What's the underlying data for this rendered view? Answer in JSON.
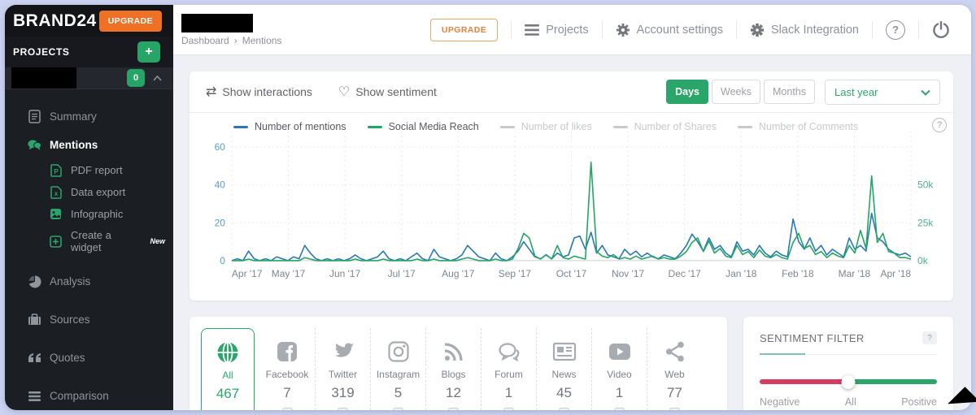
{
  "colors": {
    "accent_green": "#2aa66b",
    "accent_orange": "#ee7125",
    "mentions_blue": "#2878b4",
    "reach_green": "#21a663",
    "inactive_gray": "#c6cacd",
    "sentiment_red": "#d63b60"
  },
  "sidebar": {
    "brand": "BRAND24",
    "upgrade_label": "UPGRADE",
    "projects_label": "PROJECTS",
    "add_project_label": "+",
    "project_badge_count": "0",
    "items": [
      {
        "label": "Summary",
        "icon": "document-icon",
        "style": "normal"
      },
      {
        "label": "Mentions",
        "icon": "chat-bubbles-icon",
        "style": "active"
      },
      {
        "label": "PDF report",
        "icon": "pdf-file-icon",
        "style": "sub"
      },
      {
        "label": "Data export",
        "icon": "excel-file-icon",
        "style": "sub"
      },
      {
        "label": "Infographic",
        "icon": "image-file-icon",
        "style": "sub"
      },
      {
        "label": "Create a widget",
        "icon": "widget-plus-icon",
        "style": "sub",
        "badge": "New"
      },
      {
        "label": "Analysis",
        "icon": "pie-chart-icon",
        "style": "normal gap"
      },
      {
        "label": "Sources",
        "icon": "briefcase-icon",
        "style": "normal gap"
      },
      {
        "label": "Quotes",
        "icon": "quotes-icon",
        "style": "normal gap"
      },
      {
        "label": "Comparison",
        "icon": "layers-icon",
        "style": "normal gap"
      }
    ]
  },
  "header": {
    "breadcrumb": {
      "parent": "Dashboard",
      "separator": "›",
      "current": "Mentions"
    },
    "upgrade_label": "UPGRADE",
    "nav": [
      {
        "label": "Projects",
        "icon": "hamburger-icon"
      },
      {
        "label": "Account settings",
        "icon": "gear-icon"
      },
      {
        "label": "Slack Integration",
        "icon": "gear-icon"
      }
    ],
    "help_label": "?"
  },
  "controls": {
    "show_interactions": "Show interactions",
    "show_sentiment": "Show sentiment",
    "interactions_icon": "⇄",
    "sentiment_icon": "♡",
    "range_buttons": [
      {
        "label": "Days",
        "active": true
      },
      {
        "label": "Weeks",
        "active": false
      },
      {
        "label": "Months",
        "active": false
      }
    ],
    "period_selected": "Last year"
  },
  "chart_data": {
    "type": "line",
    "title": "",
    "x_axis_months": [
      "Apr '17",
      "May '17",
      "Jun '17",
      "Jul '17",
      "Aug '17",
      "Sep '17",
      "Oct '17",
      "Nov '17",
      "Dec '17",
      "Jan '18",
      "Feb '18",
      "Mar '18",
      "Apr '18"
    ],
    "left_axis": {
      "ticks": [
        0,
        20,
        40,
        60
      ],
      "max": 60
    },
    "right_axis": {
      "ticks": [
        {
          "label": "0k",
          "at": 0
        },
        {
          "label": "25k",
          "at": 20
        },
        {
          "label": "50k",
          "at": 40
        }
      ],
      "full_scale_k": 75
    },
    "legend": [
      {
        "name": "Number of mentions",
        "color": "#2878b4",
        "active": true
      },
      {
        "name": "Social Media Reach",
        "color": "#21a663",
        "active": true
      },
      {
        "name": "Number of likes",
        "color": "#c6cacd",
        "active": false
      },
      {
        "name": "Number of Shares",
        "color": "#c6cacd",
        "active": false
      },
      {
        "name": "Number of Comments",
        "color": "#c6cacd",
        "active": false
      }
    ],
    "series": [
      {
        "name": "Number of mentions",
        "axis": "left",
        "values": [
          0,
          1,
          0,
          5,
          1,
          0,
          1,
          0,
          2,
          1,
          0,
          2,
          1,
          8,
          4,
          1,
          0,
          1,
          0,
          1,
          0,
          1,
          3,
          1,
          0,
          1,
          2,
          5,
          1,
          0,
          1,
          0,
          2,
          4,
          1,
          0,
          6,
          2,
          1,
          0,
          1,
          3,
          8,
          5,
          2,
          1,
          0,
          4,
          1,
          0,
          2,
          5,
          10,
          6,
          2,
          1,
          3,
          1,
          4,
          2,
          3,
          12,
          13,
          6,
          15,
          4,
          8,
          3,
          2,
          1,
          6,
          3,
          5,
          2,
          4,
          2,
          1,
          3,
          2,
          1,
          4,
          8,
          14,
          10,
          5,
          12,
          6,
          8,
          4,
          2,
          10,
          5,
          6,
          3,
          8,
          4,
          2,
          5,
          3,
          2,
          22,
          10,
          6,
          12,
          5,
          8,
          3,
          6,
          4,
          2,
          12,
          6,
          8,
          5,
          25,
          12,
          10,
          6,
          4,
          3,
          4,
          2
        ]
      },
      {
        "name": "Social Media Reach",
        "axis": "right",
        "values": [
          0,
          0,
          0,
          1,
          0,
          0,
          0,
          0,
          0,
          0,
          0,
          0,
          0,
          2,
          1,
          0,
          0,
          0,
          0,
          0,
          0,
          0,
          1,
          0,
          0,
          0,
          0,
          1,
          0,
          0,
          0,
          0,
          0,
          1,
          0,
          0,
          1,
          0,
          0,
          0,
          0,
          1,
          2,
          1,
          0,
          0,
          0,
          1,
          0,
          0,
          1,
          8,
          18,
          15,
          3,
          1,
          4,
          1,
          10,
          2,
          1,
          3,
          2,
          1,
          65,
          6,
          3,
          2,
          4,
          1,
          2,
          1,
          3,
          1,
          2,
          3,
          1,
          2,
          1,
          1,
          3,
          6,
          12,
          15,
          6,
          13,
          5,
          8,
          3,
          2,
          10,
          4,
          6,
          2,
          7,
          3,
          2,
          4,
          2,
          1,
          12,
          18,
          8,
          10,
          4,
          6,
          2,
          5,
          3,
          2,
          10,
          5,
          20,
          8,
          56,
          12,
          18,
          6,
          5,
          2,
          2,
          1
        ]
      }
    ]
  },
  "sources": {
    "items": [
      {
        "label": "All",
        "count": "467",
        "icon": "globe-icon",
        "selected": true,
        "checkbox": false
      },
      {
        "label": "Facebook",
        "count": "7",
        "icon": "facebook-icon",
        "selected": false,
        "checkbox": true
      },
      {
        "label": "Twitter",
        "count": "319",
        "icon": "twitter-icon",
        "selected": false,
        "checkbox": true
      },
      {
        "label": "Instagram",
        "count": "5",
        "icon": "instagram-icon",
        "selected": false,
        "checkbox": true
      },
      {
        "label": "Blogs",
        "count": "12",
        "icon": "rss-icon",
        "selected": false,
        "checkbox": true
      },
      {
        "label": "Forum",
        "count": "1",
        "icon": "chat-bubble-icon",
        "selected": false,
        "checkbox": true
      },
      {
        "label": "News",
        "count": "45",
        "icon": "newspaper-icon",
        "selected": false,
        "checkbox": true
      },
      {
        "label": "Video",
        "count": "1",
        "icon": "play-icon",
        "selected": false,
        "checkbox": true
      },
      {
        "label": "Web",
        "count": "77",
        "icon": "share-icon",
        "selected": false,
        "checkbox": true
      }
    ]
  },
  "sentiment": {
    "title": "SENTIMENT FILTER",
    "help_label": "?",
    "labels": {
      "left": "Negative",
      "middle": "All",
      "right": "Positive"
    }
  }
}
